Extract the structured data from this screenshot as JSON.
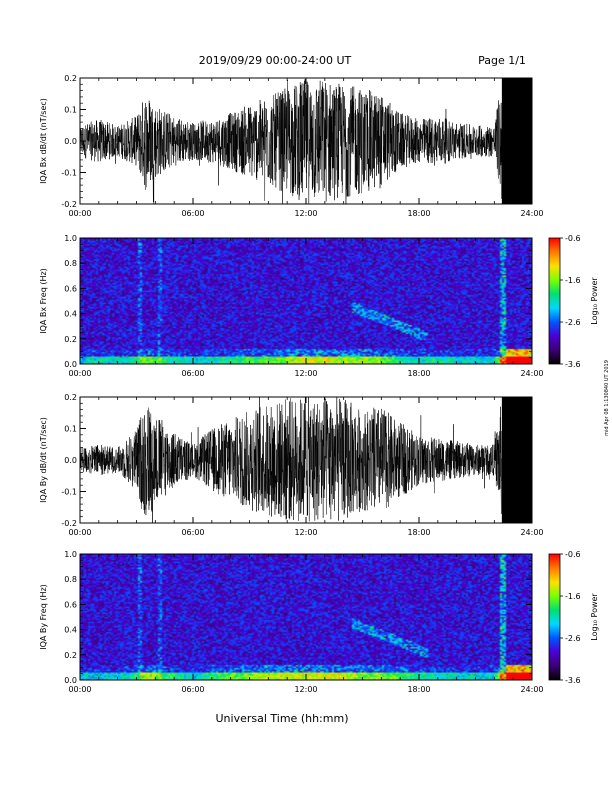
{
  "header": {
    "title": "2019/09/29  00:00-24:00 UT",
    "page": "Page 1/1"
  },
  "xlabel": "Universal Time (hh:mm)",
  "side_stamp": "mid Apr 08 1:130840 UT 2019",
  "colors": {
    "trace": "#000000",
    "spec_background": "#2a0a3a",
    "colorbar": [
      "#000000",
      "#3b0075",
      "#4b00d4",
      "#0055ff",
      "#00d8ff",
      "#00e070",
      "#7cff00",
      "#ffe000",
      "#ff7a00",
      "#ff0000"
    ]
  },
  "chart_data": [
    {
      "type": "line",
      "ylabel": "IQA Bx dB/dt (nT/sec)",
      "xlim": [
        0,
        24
      ],
      "ylim": [
        -0.2,
        0.2
      ],
      "x_ticks": [
        "00:00",
        "06:00",
        "12:00",
        "18:00",
        "24:00"
      ],
      "y_ticks": [
        "-0.2",
        "-0.1",
        "0.0",
        "0.1",
        "0.2"
      ],
      "envelope_hours": [
        0,
        1,
        2,
        3,
        3.5,
        4,
        5,
        6,
        7,
        8,
        9,
        10,
        11,
        12,
        13,
        14,
        15,
        16,
        17,
        18,
        19,
        20,
        21,
        22,
        22.4,
        24
      ],
      "envelope_amp": [
        0.05,
        0.07,
        0.05,
        0.08,
        0.16,
        0.12,
        0.08,
        0.06,
        0.07,
        0.09,
        0.12,
        0.14,
        0.17,
        0.2,
        0.2,
        0.18,
        0.17,
        0.15,
        0.09,
        0.07,
        0.08,
        0.06,
        0.05,
        0.05,
        0.2,
        0.2
      ]
    },
    {
      "type": "heatmap",
      "ylabel": "IQA Bx Freq (Hz)",
      "xlim": [
        0,
        24
      ],
      "ylim": [
        0,
        1.0
      ],
      "x_ticks": [
        "00:00",
        "06:00",
        "12:00",
        "18:00",
        "24:00"
      ],
      "y_ticks": [
        "0.0",
        "0.2",
        "0.4",
        "0.6",
        "0.8",
        "1.0"
      ],
      "colorbar_label": "Log₁₀ Power",
      "colorbar_ticks": [
        "-0.6",
        "-1.6",
        "-2.6",
        "-3.6"
      ],
      "zlim": [
        -3.6,
        -0.6
      ]
    },
    {
      "type": "line",
      "ylabel": "IQA By dB/dt (nT/sec)",
      "xlim": [
        0,
        24
      ],
      "ylim": [
        -0.2,
        0.2
      ],
      "x_ticks": [
        "00:00",
        "06:00",
        "12:00",
        "18:00",
        "24:00"
      ],
      "y_ticks": [
        "-0.2",
        "-0.1",
        "0.0",
        "0.1",
        "0.2"
      ],
      "envelope_hours": [
        0,
        1,
        2,
        3,
        3.5,
        4,
        5,
        6,
        7,
        8,
        9,
        10,
        11,
        12,
        13,
        14,
        15,
        16,
        17,
        18,
        19,
        20,
        21,
        22,
        22.4,
        24
      ],
      "envelope_amp": [
        0.04,
        0.05,
        0.04,
        0.1,
        0.2,
        0.15,
        0.09,
        0.05,
        0.1,
        0.13,
        0.16,
        0.18,
        0.2,
        0.2,
        0.2,
        0.2,
        0.16,
        0.17,
        0.12,
        0.08,
        0.07,
        0.06,
        0.05,
        0.05,
        0.2,
        0.2
      ]
    },
    {
      "type": "heatmap",
      "ylabel": "IQA By Freq (Hz)",
      "xlim": [
        0,
        24
      ],
      "ylim": [
        0,
        1.0
      ],
      "x_ticks": [
        "00:00",
        "06:00",
        "12:00",
        "18:00",
        "24:00"
      ],
      "y_ticks": [
        "0.0",
        "0.2",
        "0.4",
        "0.6",
        "0.8",
        "1.0"
      ],
      "colorbar_label": "Log₁₀ Power",
      "colorbar_ticks": [
        "-0.6",
        "-1.6",
        "-2.6",
        "-3.6"
      ],
      "zlim": [
        -3.6,
        -0.6
      ]
    }
  ]
}
